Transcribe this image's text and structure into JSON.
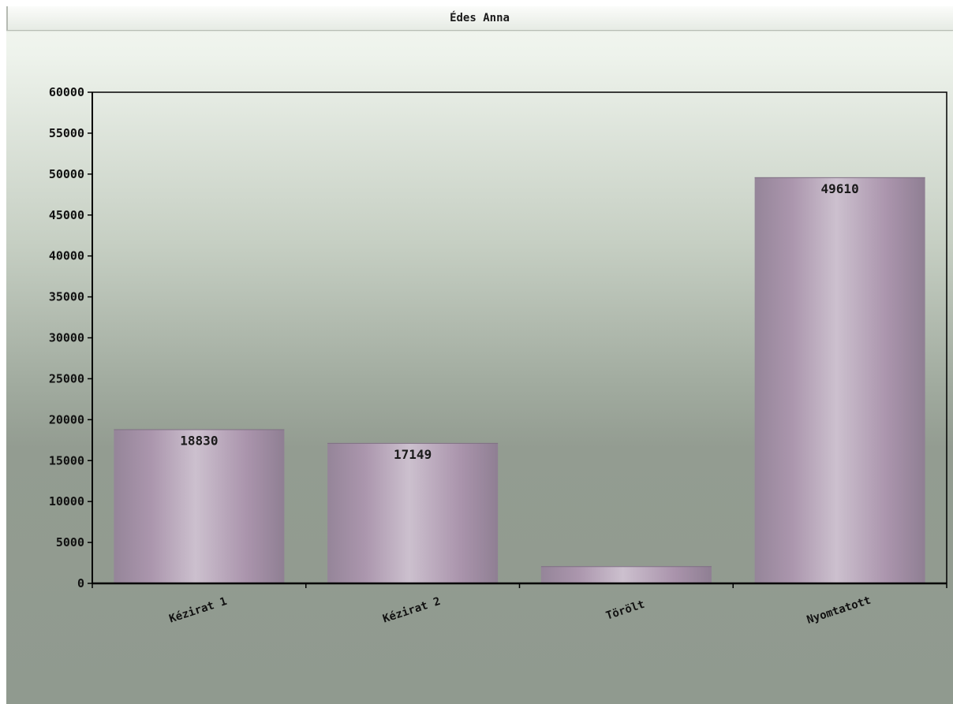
{
  "header": {
    "title": "Édes Anna"
  },
  "chart_data": {
    "type": "bar",
    "title": "Édes Anna",
    "categories": [
      "Kézirat 1",
      "Kézirat 2",
      "Törölt",
      "Nyomtatott"
    ],
    "values": [
      18830,
      17149,
      2100,
      49610
    ],
    "value_labels": [
      "18830",
      "17149",
      "",
      "49610"
    ],
    "ylim": [
      0,
      60000
    ],
    "y_ticks": [
      0,
      5000,
      10000,
      15000,
      20000,
      25000,
      30000,
      35000,
      40000,
      45000,
      50000,
      55000,
      60000
    ],
    "xlabel": "",
    "ylabel": "",
    "grid": false,
    "legend": "none",
    "colors": {
      "bar_edge": "#9c8aa0",
      "bar_mid": "#ad97af",
      "bar_light": "#cbbdcd",
      "axis": "#000000"
    }
  }
}
